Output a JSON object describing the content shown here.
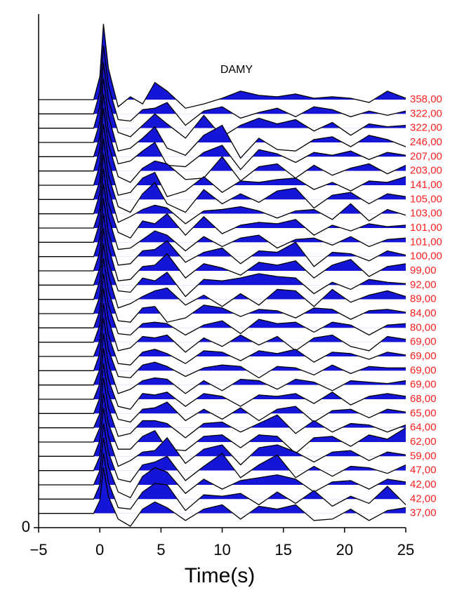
{
  "chart_data": {
    "type": "wiggle",
    "title": "DAMY",
    "x_label": "Time(s)",
    "xlim": [
      -5,
      25
    ],
    "xticks": [
      {
        "value": -5,
        "label": "−5"
      },
      0,
      5,
      10,
      15,
      20,
      25
    ],
    "ylim": [
      0,
      36
    ],
    "yticks": [
      0
    ],
    "fill_color": "#1515d8",
    "line_color": "#000000",
    "label_color": "#ff2020",
    "x": [
      -5,
      -0.5,
      0,
      0.3,
      0.7,
      1.5,
      2.5,
      3.5,
      4.5,
      5.5,
      7,
      8.5,
      10,
      11.5,
      13,
      14.5,
      16,
      17.5,
      19,
      20.5,
      22,
      23.5,
      25
    ],
    "series": [
      {
        "name": "358,00",
        "values": [
          0,
          0,
          1.6,
          5.3,
          2.2,
          -0.5,
          0.2,
          -0.3,
          1.2,
          0.6,
          -0.6,
          -0.3,
          0.1,
          0.6,
          0.3,
          0.2,
          0.4,
          0.1,
          0.2,
          0.1,
          -0.2,
          0.6,
          0.1
        ]
      },
      {
        "name": "322,00",
        "values": [
          0,
          0,
          1.5,
          4.8,
          2.0,
          -0.4,
          -0.5,
          0.3,
          0.4,
          0.8,
          -0.8,
          0.2,
          0.5,
          -0.3,
          0.1,
          0.4,
          -0.2,
          0.5,
          0.3,
          -0.2,
          0.2,
          -0.1,
          0.2
        ]
      },
      {
        "name": "322,00",
        "values": [
          0,
          0,
          1.5,
          4.6,
          2.0,
          -0.3,
          -0.6,
          0.2,
          1.0,
          0.3,
          -0.7,
          0.9,
          -0.6,
          0.2,
          0.7,
          0.3,
          0.6,
          -0.2,
          0.4,
          -0.5,
          0.3,
          0.1,
          0.2
        ]
      },
      {
        "name": "246,00",
        "values": [
          0,
          0,
          1.4,
          4.5,
          1.9,
          -0.6,
          -0.4,
          0.3,
          1.1,
          -0.4,
          -0.9,
          0.5,
          1.2,
          -1.1,
          0.3,
          -0.5,
          -0.6,
          0.2,
          0.4,
          -0.3,
          0.5,
          0.2,
          -0.3
        ]
      },
      {
        "name": "207,00",
        "values": [
          0,
          0,
          1.4,
          4.4,
          1.8,
          -0.5,
          -0.3,
          0.4,
          1.0,
          -0.6,
          -0.7,
          0.3,
          0.8,
          -0.9,
          0.5,
          0.2,
          -0.4,
          0.3,
          0.1,
          0.4,
          -0.2,
          0.3,
          0.1
        ]
      },
      {
        "name": "203,00",
        "values": [
          0,
          0,
          1.5,
          4.4,
          1.9,
          -0.4,
          -0.8,
          0.2,
          0.7,
          0.5,
          -0.6,
          -0.5,
          1.0,
          -0.7,
          0.3,
          0.5,
          -0.5,
          0.4,
          -0.3,
          0.2,
          0.5,
          -0.2,
          0.4
        ]
      },
      {
        "name": "141,00",
        "values": [
          0,
          0,
          1.4,
          4.3,
          1.8,
          -0.7,
          -0.5,
          0.5,
          0.9,
          -0.8,
          -0.4,
          0.6,
          -0.5,
          0.3,
          0.2,
          0.4,
          0.5,
          -0.3,
          0.2,
          -0.4,
          0.3,
          0.2,
          0.6
        ]
      },
      {
        "name": "105,00",
        "values": [
          0,
          0,
          1.3,
          4.3,
          1.7,
          -0.5,
          -0.9,
          0.4,
          1.2,
          -0.3,
          -0.9,
          0.7,
          -0.3,
          0.4,
          -0.2,
          0.6,
          0.8,
          -0.6,
          0.3,
          0.5,
          -0.3,
          0.4,
          0.2
        ]
      },
      {
        "name": "103,00",
        "values": [
          0,
          0,
          1.4,
          4.2,
          1.8,
          -0.6,
          -0.2,
          0.3,
          0.6,
          0.4,
          -0.7,
          0.2,
          0.3,
          0.5,
          0.2,
          -0.3,
          0.2,
          0.3,
          -0.4,
          0.7,
          -0.5,
          0.3,
          -0.1
        ]
      },
      {
        "name": "101,00",
        "values": [
          0,
          0,
          1.3,
          4.2,
          1.7,
          -0.3,
          -0.7,
          0.5,
          0.3,
          1.0,
          -0.5,
          0.8,
          -0.4,
          0.2,
          0.4,
          0.3,
          0.6,
          -0.5,
          0.2,
          -0.2,
          0.3,
          0.1,
          0.2
        ]
      },
      {
        "name": "101,00",
        "values": [
          0,
          0,
          1.4,
          4.1,
          1.8,
          -0.5,
          -0.4,
          0.2,
          0.8,
          0.5,
          -0.6,
          0.4,
          -0.3,
          0.3,
          0.5,
          -0.4,
          0.2,
          0.3,
          -0.2,
          0.4,
          -0.3,
          0.2,
          0.3
        ]
      },
      {
        "name": "100,00",
        "values": [
          0,
          0,
          1.3,
          4.1,
          1.7,
          -0.6,
          -0.5,
          0.4,
          0.5,
          1.1,
          -0.4,
          0.3,
          0.6,
          -0.5,
          0.4,
          0.3,
          1.0,
          -0.7,
          0.3,
          0.2,
          -0.3,
          0.4,
          0.1
        ]
      },
      {
        "name": "99,00",
        "values": [
          0,
          0,
          1.3,
          4.0,
          1.7,
          -0.7,
          -0.6,
          0.3,
          0.4,
          1.2,
          -0.5,
          0.5,
          0.2,
          -0.3,
          0.6,
          0.4,
          0.7,
          -0.5,
          0.4,
          0.8,
          -0.4,
          0.3,
          0.5
        ]
      },
      {
        "name": "92,00",
        "values": [
          0,
          0,
          1.2,
          4.0,
          1.6,
          -0.4,
          -0.5,
          0.5,
          0.3,
          0.9,
          -0.8,
          0.4,
          0.3,
          0.5,
          0.8,
          0.6,
          0.5,
          -0.6,
          0.2,
          -0.3,
          0.4,
          0.2,
          0.1
        ]
      },
      {
        "name": "89,00",
        "values": [
          0,
          0,
          1.3,
          3.9,
          1.7,
          -0.6,
          -0.3,
          0.2,
          0.6,
          0.8,
          -0.4,
          0.3,
          -0.5,
          0.4,
          -0.4,
          0.7,
          0.6,
          -0.5,
          0.7,
          -0.2,
          0.3,
          0.6,
          0.2
        ]
      },
      {
        "name": "84,00",
        "values": [
          0,
          0,
          1.2,
          3.9,
          1.6,
          -0.5,
          -0.6,
          0.4,
          0.5,
          -0.6,
          -0.3,
          0.6,
          0.4,
          -0.2,
          0.3,
          0.2,
          -0.3,
          0.4,
          0.3,
          -0.4,
          0.2,
          0.3,
          0.1
        ]
      },
      {
        "name": "80,00",
        "values": [
          0,
          0,
          1.2,
          3.8,
          1.6,
          -0.4,
          -0.5,
          0.3,
          0.4,
          0.3,
          -0.5,
          0.2,
          0.5,
          -0.4,
          0.6,
          0.3,
          0.4,
          -0.3,
          0.4,
          0.2,
          -0.5,
          0.2,
          0.3
        ]
      },
      {
        "name": "69,00",
        "values": [
          0,
          0,
          1.2,
          3.8,
          1.6,
          -0.6,
          -0.4,
          0.4,
          0.3,
          0.5,
          -0.7,
          0.3,
          -0.3,
          0.5,
          -0.2,
          0.4,
          -0.6,
          0.3,
          0.5,
          -0.3,
          -0.6,
          0.4,
          0.2
        ]
      },
      {
        "name": "69,00",
        "values": [
          0,
          0,
          1.1,
          3.7,
          1.5,
          -0.5,
          -0.6,
          0.3,
          0.5,
          0.2,
          -0.5,
          0.4,
          0.3,
          -0.3,
          0.4,
          0.2,
          0.5,
          -0.4,
          0.3,
          0.2,
          -0.2,
          0.3,
          0.1
        ]
      },
      {
        "name": "69,00",
        "values": [
          0,
          0,
          1.2,
          3.7,
          1.5,
          -0.4,
          -0.5,
          0.4,
          0.6,
          0.3,
          -0.4,
          0.2,
          0.4,
          0.3,
          -0.5,
          0.3,
          0.2,
          -0.3,
          0.4,
          -0.2,
          0.3,
          0.2,
          0.2
        ]
      },
      {
        "name": "69,00",
        "values": [
          0,
          0,
          1.1,
          3.6,
          1.5,
          -0.6,
          -0.3,
          0.3,
          0.5,
          0.4,
          -0.6,
          0.3,
          -0.4,
          0.4,
          0.3,
          -0.3,
          0.4,
          0.2,
          -0.4,
          0.3,
          0.2,
          0.1,
          0.3
        ]
      },
      {
        "name": "68,00",
        "values": [
          0,
          0,
          1.1,
          3.6,
          1.4,
          -0.5,
          -0.7,
          0.4,
          0.3,
          0.5,
          -0.5,
          0.4,
          0.2,
          -0.5,
          0.3,
          0.2,
          0.4,
          -0.3,
          0.5,
          -0.4,
          0.2,
          0.4,
          0.2
        ]
      },
      {
        "name": "65,00",
        "values": [
          0,
          0,
          1.1,
          3.5,
          1.4,
          -0.4,
          -0.6,
          0.3,
          0.4,
          0.8,
          -0.5,
          0.3,
          -0.4,
          0.4,
          -0.5,
          0.3,
          0.5,
          -0.6,
          0.2,
          0.3,
          -0.3,
          0.3,
          0.1
        ]
      },
      {
        "name": "64,00",
        "values": [
          0,
          0,
          1.0,
          3.5,
          1.4,
          -0.6,
          -0.4,
          0.5,
          0.5,
          0.3,
          -0.7,
          0.3,
          0.4,
          -0.3,
          0.3,
          0.9,
          -0.4,
          0.5,
          -0.3,
          0.3,
          0.2,
          -0.3,
          0.2
        ]
      },
      {
        "name": "62,00",
        "values": [
          0,
          0,
          1.0,
          3.4,
          1.3,
          -0.5,
          -0.5,
          0.4,
          0.8,
          -0.5,
          -0.6,
          0.4,
          0.5,
          -0.4,
          0.5,
          0.4,
          -0.8,
          0.3,
          0.4,
          -0.3,
          0.5,
          0.2,
          1.0
        ]
      },
      {
        "name": "59,00",
        "values": [
          0,
          0,
          1.1,
          3.4,
          1.4,
          -0.7,
          -0.3,
          0.3,
          0.4,
          1.3,
          -0.5,
          0.5,
          0.8,
          -0.6,
          0.6,
          0.8,
          0.3,
          -0.4,
          0.3,
          0.4,
          -0.3,
          0.3,
          0.1
        ]
      },
      {
        "name": "47,00",
        "values": [
          0,
          0,
          1.0,
          3.3,
          1.3,
          -0.6,
          -0.8,
          0.4,
          0.6,
          1.0,
          -0.7,
          0.3,
          1.2,
          -0.5,
          0.4,
          1.1,
          -0.5,
          0.3,
          -0.4,
          0.3,
          0.2,
          -0.2,
          0.4
        ]
      },
      {
        "name": "42,00",
        "values": [
          0,
          0,
          1.0,
          3.3,
          1.3,
          -0.5,
          -0.9,
          0.6,
          1.2,
          0.9,
          -0.6,
          0.4,
          -0.3,
          0.3,
          0.5,
          0.7,
          0.4,
          -0.5,
          0.2,
          0.3,
          -0.3,
          0.4,
          0.2
        ]
      },
      {
        "name": "42,00",
        "values": [
          0,
          0,
          1.0,
          3.2,
          1.2,
          -0.6,
          -0.7,
          0.5,
          1.1,
          1.0,
          -0.8,
          0.3,
          0.2,
          0.4,
          -0.4,
          0.5,
          -0.3,
          0.6,
          -0.5,
          0.2,
          -0.3,
          0.9,
          -0.4
        ]
      },
      {
        "name": "37,00",
        "values": [
          0,
          0,
          0.9,
          3.2,
          1.2,
          -0.4,
          -0.9,
          0.3,
          0.8,
          0.4,
          -0.5,
          0.3,
          0.6,
          -0.4,
          0.5,
          0.3,
          0.6,
          -0.5,
          -0.4,
          0.3,
          -0.5,
          0.2,
          0.4
        ]
      }
    ]
  }
}
